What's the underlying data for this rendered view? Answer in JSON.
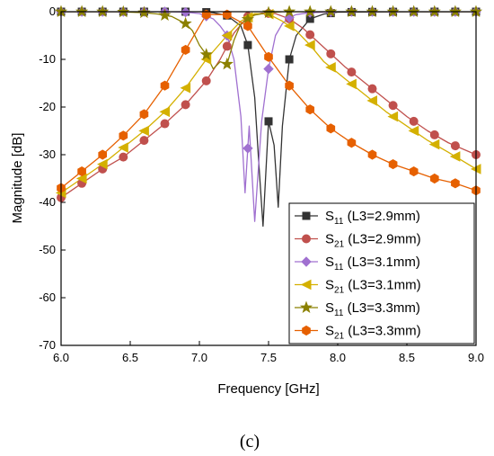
{
  "chart_data": {
    "type": "line",
    "xlabel": "Frequency [GHz]",
    "ylabel": "Magnitude [dB]",
    "xlim": [
      6.0,
      9.0
    ],
    "ylim": [
      -70,
      0
    ],
    "x_ticks": [
      "6.0",
      "6.5",
      "7.0",
      "7.5",
      "8.0",
      "8.5",
      "9.0"
    ],
    "y_ticks": [
      "0",
      "-10",
      "-20",
      "-30",
      "-40",
      "-50",
      "-60",
      "-70"
    ],
    "grid": false,
    "legend_position": "bottom-right",
    "caption": "(c)",
    "series": [
      {
        "name": "S11 (L3=2.9mm)",
        "label_main": "S",
        "label_sub": "11",
        "label_rest": " (L3=2.9mm)",
        "color": "#333333",
        "marker": "square",
        "x": [
          6.0,
          6.2,
          6.4,
          6.6,
          6.8,
          7.0,
          7.1,
          7.2,
          7.3,
          7.35,
          7.4,
          7.43,
          7.46,
          7.5,
          7.54,
          7.57,
          7.6,
          7.65,
          7.7,
          7.8,
          7.9,
          8.0,
          8.5,
          9.0
        ],
        "y": [
          0,
          0,
          0,
          0,
          0,
          0,
          -0.2,
          -0.8,
          -3,
          -7,
          -18,
          -32,
          -45,
          -23,
          -28,
          -41,
          -24,
          -10,
          -5,
          -1.5,
          -0.5,
          -0.1,
          0,
          0
        ]
      },
      {
        "name": "S21 (L3=2.9mm)",
        "label_main": "S",
        "label_sub": "21",
        "label_rest": " (L3=2.9mm)",
        "color": "#c0504d",
        "marker": "circle",
        "x": [
          6.0,
          6.15,
          6.3,
          6.45,
          6.6,
          6.75,
          6.9,
          7.05,
          7.15,
          7.25,
          7.35,
          7.45,
          7.55,
          7.65,
          7.75,
          7.9,
          8.05,
          8.2,
          8.35,
          8.5,
          8.65,
          8.8,
          9.0
        ],
        "y": [
          -39,
          -36,
          -33,
          -30.5,
          -27,
          -23.5,
          -19.5,
          -14.5,
          -10,
          -4.5,
          -1,
          -0.3,
          -0.4,
          -1.5,
          -3.5,
          -7.5,
          -11.5,
          -15,
          -18.5,
          -22,
          -25,
          -27.5,
          -30
        ]
      },
      {
        "name": "S11 (L3=3.1mm)",
        "label_main": "S",
        "label_sub": "11",
        "label_rest": " (L3=3.1mm)",
        "color": "#a070d0",
        "marker": "diamond",
        "x": [
          6.0,
          6.2,
          6.4,
          6.6,
          6.8,
          6.9,
          7.0,
          7.1,
          7.15,
          7.2,
          7.25,
          7.3,
          7.33,
          7.36,
          7.4,
          7.45,
          7.5,
          7.55,
          7.6,
          7.65,
          7.7,
          7.8,
          8.0,
          9.0
        ],
        "y": [
          0,
          0,
          0,
          0,
          0,
          -0.1,
          -0.4,
          -1.5,
          -3,
          -5,
          -10,
          -22,
          -38,
          -24,
          -44,
          -23,
          -12,
          -5,
          -2.5,
          -1.2,
          -0.6,
          -0.2,
          0,
          0
        ]
      },
      {
        "name": "S21 (L3=3.1mm)",
        "label_main": "S",
        "label_sub": "21",
        "label_rest": " (L3=3.1mm)",
        "color": "#d4b000",
        "marker": "triangle-left",
        "x": [
          6.0,
          6.15,
          6.3,
          6.45,
          6.6,
          6.75,
          6.9,
          7.05,
          7.2,
          7.3,
          7.4,
          7.5,
          7.6,
          7.7,
          7.8,
          7.9,
          8.05,
          8.2,
          8.35,
          8.5,
          8.65,
          8.8,
          9.0
        ],
        "y": [
          -38,
          -35,
          -32,
          -28.5,
          -25,
          -21,
          -16,
          -10,
          -5,
          -2,
          -0.4,
          -0.5,
          -2,
          -4,
          -7,
          -10.5,
          -14,
          -17.5,
          -21,
          -24,
          -27,
          -29.5,
          -33
        ]
      },
      {
        "name": "S11 (L3=3.3mm)",
        "label_main": "S",
        "label_sub": "11",
        "label_rest": " (L3=3.3mm)",
        "color": "#8b8000",
        "marker": "star",
        "x": [
          6.0,
          6.2,
          6.4,
          6.6,
          6.7,
          6.8,
          6.9,
          6.95,
          7.0,
          7.05,
          7.1,
          7.15,
          7.2,
          7.25,
          7.3,
          7.4,
          7.5,
          7.6,
          7.8,
          8.0,
          9.0
        ],
        "y": [
          0,
          0,
          0,
          -0.2,
          -0.5,
          -1,
          -2.5,
          -4,
          -7,
          -9,
          -12,
          -10.5,
          -11,
          -6,
          -2.5,
          -0.7,
          -0.2,
          0,
          0,
          0,
          0
        ]
      },
      {
        "name": "S21 (L3=3.3mm)",
        "label_main": "S",
        "label_sub": "21",
        "label_rest": " (L3=3.3mm)",
        "color": "#e66000",
        "marker": "hexagon",
        "x": [
          6.0,
          6.15,
          6.3,
          6.45,
          6.6,
          6.75,
          6.9,
          7.05,
          7.2,
          7.35,
          7.5,
          7.65,
          7.8,
          7.95,
          8.1,
          8.25,
          8.4,
          8.55,
          8.7,
          8.85,
          9.0
        ],
        "y": [
          -37,
          -33.5,
          -30,
          -26,
          -21.5,
          -15.5,
          -8,
          -0.6,
          -0.6,
          -3,
          -9.5,
          -15.5,
          -20.5,
          -24.5,
          -27.5,
          -30,
          -32,
          -33.5,
          -35,
          -36,
          -37.5
        ]
      }
    ]
  }
}
